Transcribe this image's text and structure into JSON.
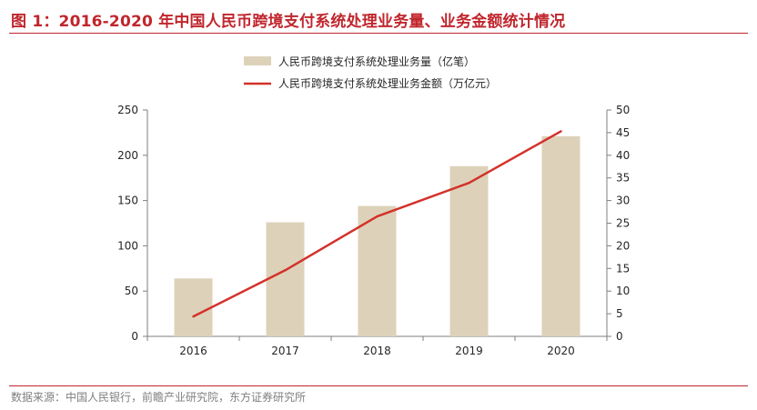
{
  "header": {
    "title": "图 1：2016-2020 年中国人民币跨境支付系统处理业务量、业务金额统计情况"
  },
  "footer": {
    "source": "数据来源：中国人民银行，前瞻产业研究院，东方证券研究所"
  },
  "colors": {
    "accent": "#c0262d",
    "bar": "#ddd2b9",
    "line": "#d4312a",
    "axis": "#7f7f7f",
    "text": "#262626"
  },
  "chart_data": {
    "type": "bar",
    "categories": [
      "2016",
      "2017",
      "2018",
      "2019",
      "2020"
    ],
    "series": [
      {
        "name": "人民币跨境支付系统处理业务量（亿笔）",
        "type": "bar",
        "axis": "left",
        "values": [
          64,
          126,
          144,
          188,
          221
        ]
      },
      {
        "name": "人民币跨境支付系统处理业务金额（万亿元）",
        "type": "line",
        "axis": "right",
        "values": [
          4.4,
          14.6,
          26.5,
          33.9,
          45.3
        ]
      }
    ],
    "ylim_left": [
      0,
      250
    ],
    "yticks_left": [
      "0",
      "50",
      "100",
      "150",
      "200",
      "250"
    ],
    "ylim_right": [
      0,
      50
    ],
    "yticks_right": [
      "0",
      "5",
      "10",
      "15",
      "20",
      "25",
      "30",
      "35",
      "40",
      "45",
      "50"
    ],
    "legend_position": "top-center",
    "grid": false
  }
}
